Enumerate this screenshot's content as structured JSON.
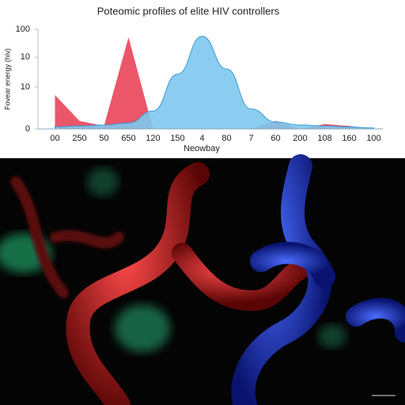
{
  "chart_data": {
    "type": "area",
    "title": "Poteomic profiles of elite HIV controllers",
    "y_label": "Fovear energy (hiv)",
    "x_label": "Neowbay",
    "categories": [
      "00",
      "250",
      "50",
      "650",
      "120",
      "150",
      "4",
      "80",
      "7",
      "60",
      "200",
      "108",
      "160",
      "100"
    ],
    "series": [
      {
        "color": "#7ec8ee",
        "values": [
          2,
          3,
          4,
          6,
          18,
          55,
          93,
          60,
          20,
          7,
          4,
          3,
          2,
          1
        ]
      },
      {
        "color": "#e8384f",
        "values": [
          34,
          8,
          3,
          92,
          0,
          0,
          0,
          0,
          0,
          8,
          0,
          5,
          3,
          0
        ]
      }
    ],
    "ylim": [
      0,
      100
    ],
    "yticks": [
      0,
      {
        "value": 42,
        "label": "10"
      },
      {
        "value": 72,
        "label": "10"
      },
      100
    ]
  }
}
